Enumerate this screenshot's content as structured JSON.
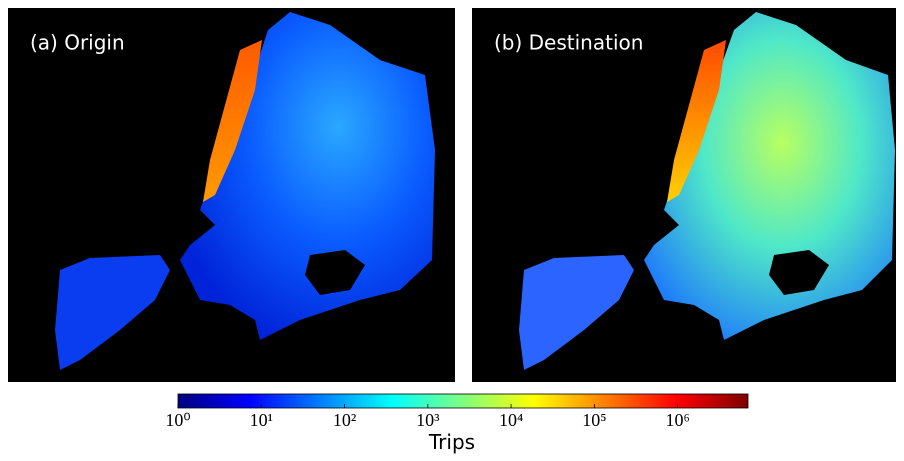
{
  "panels": [
    {
      "label": "(a) Origin"
    },
    {
      "label": "(b) Destination"
    }
  ],
  "colorbar": {
    "label": "Trips",
    "scale": "log",
    "colormap": "jet",
    "lim": [
      1,
      7000000
    ],
    "ticks": [
      {
        "value": 1,
        "label": "10⁰"
      },
      {
        "value": 10,
        "label": "10¹"
      },
      {
        "value": 100,
        "label": "10²"
      },
      {
        "value": 1000,
        "label": "10³"
      },
      {
        "value": 10000,
        "label": "10⁴"
      },
      {
        "value": 100000,
        "label": "10⁵"
      },
      {
        "value": 1000000,
        "label": "10⁶"
      }
    ]
  }
}
